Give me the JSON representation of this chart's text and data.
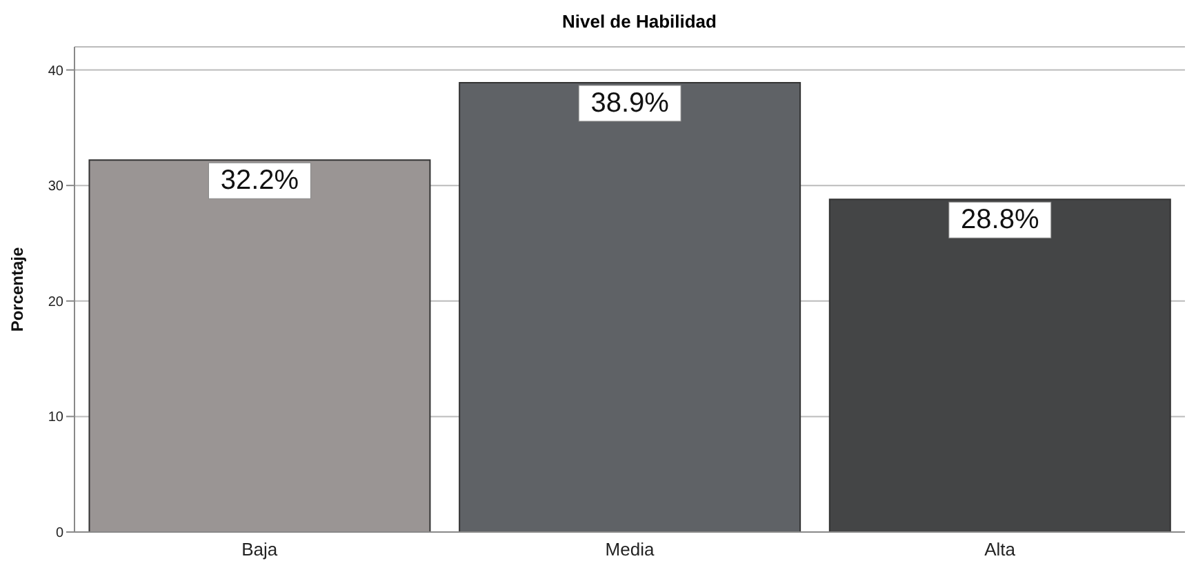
{
  "chart_data": {
    "type": "bar",
    "title": "Nivel de Habilidad",
    "ylabel": "Porcentaje",
    "categories": [
      "Baja",
      "Media",
      "Alta"
    ],
    "values": [
      32.2,
      38.9,
      28.8
    ],
    "colors": [
      "#9a9594",
      "#5f6266",
      "#444546"
    ],
    "value_labels": [
      "32.2%",
      "38.9%",
      "28.8%"
    ],
    "ylim": [
      0,
      42
    ],
    "yticks": [
      0,
      10,
      20,
      30,
      40
    ],
    "grid": "y",
    "legend": false
  }
}
